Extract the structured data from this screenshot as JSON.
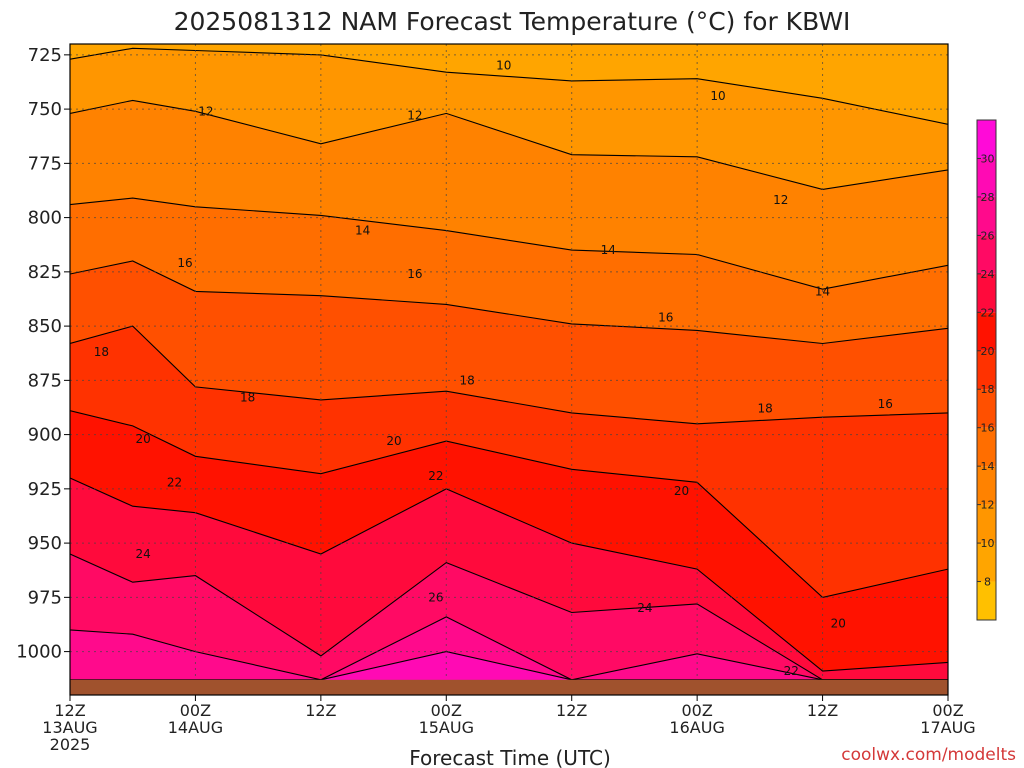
{
  "chart_data": {
    "type": "heatmap",
    "title": "2025081312 NAM Forecast Temperature (°C) for KBWI",
    "xlabel": "Forecast Time (UTC)",
    "ylabel": "",
    "credit": "coolwx.com/modelts",
    "x_range_hours": [
      0,
      84
    ],
    "y_range_hpa": [
      720,
      1020
    ],
    "y_ticks": [
      725,
      750,
      775,
      800,
      825,
      850,
      875,
      900,
      925,
      950,
      975,
      1000
    ],
    "x_ticks": [
      {
        "hour": 0,
        "line1": "12Z",
        "line2": "13AUG",
        "line3": "2025"
      },
      {
        "hour": 12,
        "line1": "00Z",
        "line2": "14AUG",
        "line3": ""
      },
      {
        "hour": 24,
        "line1": "12Z",
        "line2": "",
        "line3": ""
      },
      {
        "hour": 36,
        "line1": "00Z",
        "line2": "15AUG",
        "line3": ""
      },
      {
        "hour": 48,
        "line1": "12Z",
        "line2": "",
        "line3": ""
      },
      {
        "hour": 60,
        "line1": "00Z",
        "line2": "16AUG",
        "line3": ""
      },
      {
        "hour": 72,
        "line1": "12Z",
        "line2": "",
        "line3": ""
      },
      {
        "hour": 84,
        "line1": "00Z",
        "line2": "17AUG",
        "line3": ""
      }
    ],
    "grid": true,
    "surface_pressure_hpa": 1013,
    "colorbar": {
      "levels": [
        6,
        8,
        10,
        12,
        14,
        16,
        18,
        20,
        22,
        24,
        26,
        28,
        30,
        32
      ],
      "labels": [
        8,
        10,
        12,
        14,
        16,
        18,
        20,
        22,
        24,
        26,
        28,
        30
      ],
      "colors": [
        "#ffc000",
        "#ffa500",
        "#ff9600",
        "#ff8200",
        "#ff6e00",
        "#ff5000",
        "#ff3200",
        "#ff1200",
        "#ff0a3c",
        "#ff0a64",
        "#ff0a8c",
        "#ff0ab4",
        "#ff0ad8"
      ]
    },
    "isotherms": [
      {
        "value": 10,
        "points": [
          [
            0,
            727
          ],
          [
            6,
            722
          ],
          [
            12,
            723
          ],
          [
            24,
            725
          ],
          [
            36,
            733
          ],
          [
            48,
            737
          ],
          [
            60,
            736
          ],
          [
            72,
            745
          ],
          [
            84,
            757
          ]
        ]
      },
      {
        "value": 12,
        "points": [
          [
            0,
            752
          ],
          [
            6,
            746
          ],
          [
            12,
            751
          ],
          [
            24,
            766
          ],
          [
            36,
            752
          ],
          [
            48,
            771
          ],
          [
            60,
            772
          ],
          [
            72,
            787
          ],
          [
            84,
            778
          ]
        ]
      },
      {
        "value": 14,
        "points": [
          [
            0,
            794
          ],
          [
            6,
            791
          ],
          [
            12,
            795
          ],
          [
            24,
            799
          ],
          [
            36,
            806
          ],
          [
            48,
            815
          ],
          [
            60,
            817
          ],
          [
            72,
            833
          ],
          [
            84,
            822
          ]
        ]
      },
      {
        "value": 16,
        "points": [
          [
            0,
            826
          ],
          [
            6,
            820
          ],
          [
            12,
            834
          ],
          [
            24,
            836
          ],
          [
            36,
            840
          ],
          [
            48,
            849
          ],
          [
            60,
            852
          ],
          [
            72,
            858
          ],
          [
            84,
            851
          ]
        ]
      },
      {
        "value": 18,
        "points": [
          [
            0,
            858
          ],
          [
            6,
            850
          ],
          [
            12,
            878
          ],
          [
            24,
            884
          ],
          [
            36,
            880
          ],
          [
            48,
            890
          ],
          [
            60,
            895
          ],
          [
            72,
            892
          ],
          [
            84,
            890
          ]
        ]
      },
      {
        "value": 20,
        "points": [
          [
            0,
            889
          ],
          [
            6,
            896
          ],
          [
            12,
            910
          ],
          [
            24,
            918
          ],
          [
            36,
            903
          ],
          [
            48,
            916
          ],
          [
            60,
            922
          ],
          [
            72,
            975
          ],
          [
            84,
            962
          ]
        ]
      },
      {
        "value": 22,
        "points": [
          [
            0,
            920
          ],
          [
            6,
            933
          ],
          [
            12,
            936
          ],
          [
            24,
            955
          ],
          [
            36,
            925
          ],
          [
            48,
            950
          ],
          [
            60,
            962
          ],
          [
            72,
            1009
          ],
          [
            84,
            1005
          ]
        ]
      },
      {
        "value": 24,
        "points": [
          [
            0,
            955
          ],
          [
            6,
            968
          ],
          [
            12,
            965
          ],
          [
            24,
            1002
          ],
          [
            36,
            959
          ],
          [
            48,
            982
          ],
          [
            60,
            978
          ],
          [
            72,
            1013
          ],
          [
            84,
            1013
          ]
        ]
      },
      {
        "value": 26,
        "points": [
          [
            0,
            990
          ],
          [
            6,
            992
          ],
          [
            12,
            1000
          ],
          [
            24,
            1013
          ],
          [
            36,
            984
          ],
          [
            48,
            1013
          ],
          [
            60,
            1001
          ],
          [
            72,
            1013
          ],
          [
            84,
            1013
          ]
        ]
      },
      {
        "value": 28,
        "points": [
          [
            0,
            1013
          ],
          [
            6,
            1013
          ],
          [
            12,
            1013
          ],
          [
            24,
            1013
          ],
          [
            36,
            1000
          ],
          [
            48,
            1013
          ],
          [
            60,
            1013
          ],
          [
            72,
            1013
          ],
          [
            84,
            1013
          ]
        ]
      }
    ],
    "contour_labels": [
      {
        "text": "10",
        "hour": 41.5,
        "hpa": 730
      },
      {
        "text": "10",
        "hour": 62,
        "hpa": 744
      },
      {
        "text": "12",
        "hour": 13,
        "hpa": 751
      },
      {
        "text": "12",
        "hour": 33,
        "hpa": 753
      },
      {
        "text": "12",
        "hour": 68,
        "hpa": 792
      },
      {
        "text": "14",
        "hour": 28,
        "hpa": 806
      },
      {
        "text": "14",
        "hour": 51.5,
        "hpa": 815
      },
      {
        "text": "14",
        "hour": 72,
        "hpa": 834
      },
      {
        "text": "16",
        "hour": 11,
        "hpa": 821
      },
      {
        "text": "16",
        "hour": 33,
        "hpa": 826
      },
      {
        "text": "16",
        "hour": 57,
        "hpa": 846
      },
      {
        "text": "16",
        "hour": 78,
        "hpa": 886
      },
      {
        "text": "18",
        "hour": 3,
        "hpa": 862
      },
      {
        "text": "18",
        "hour": 17,
        "hpa": 883
      },
      {
        "text": "18",
        "hour": 38,
        "hpa": 875
      },
      {
        "text": "18",
        "hour": 66.5,
        "hpa": 888
      },
      {
        "text": "20",
        "hour": 7,
        "hpa": 902
      },
      {
        "text": "20",
        "hour": 31,
        "hpa": 903
      },
      {
        "text": "20",
        "hour": 58.5,
        "hpa": 926
      },
      {
        "text": "20",
        "hour": 73.5,
        "hpa": 987
      },
      {
        "text": "22",
        "hour": 10,
        "hpa": 922
      },
      {
        "text": "22",
        "hour": 35,
        "hpa": 919
      },
      {
        "text": "22",
        "hour": 69,
        "hpa": 1009
      },
      {
        "text": "24",
        "hour": 7,
        "hpa": 955
      },
      {
        "text": "24",
        "hour": 55,
        "hpa": 980
      },
      {
        "text": "26",
        "hour": 35,
        "hpa": 975
      }
    ]
  }
}
